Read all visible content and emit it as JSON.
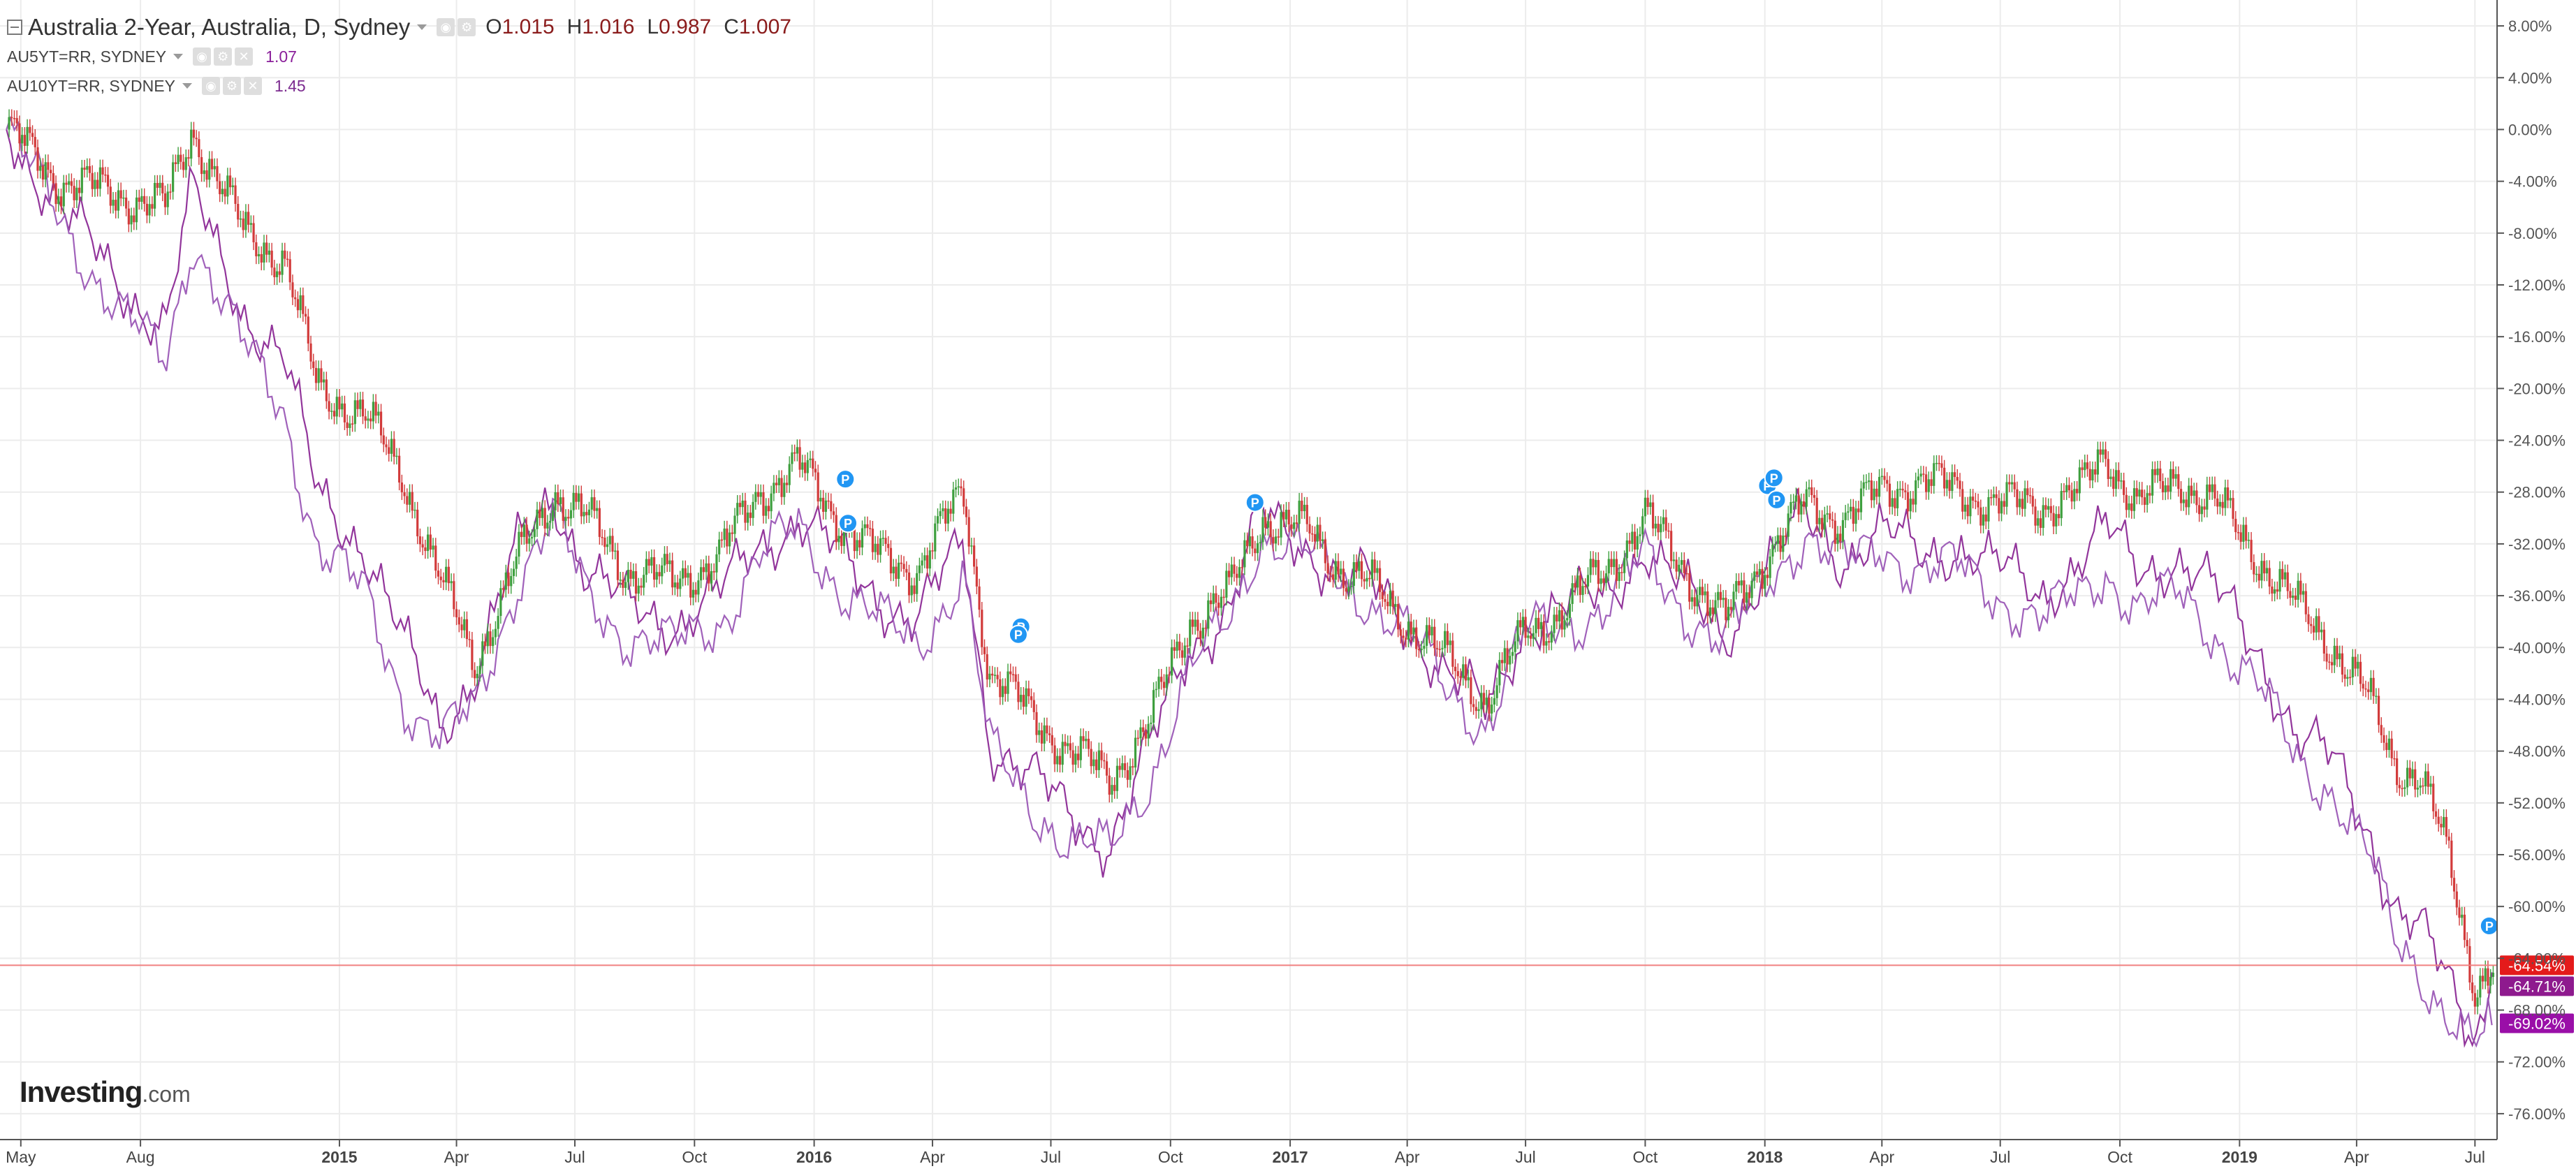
{
  "legend": {
    "main_title": "Australia 2-Year, Australia, D, Sydney",
    "ohlc": {
      "o_label": "O",
      "o_value": "1.015",
      "h_label": "H",
      "h_value": "1.016",
      "l_label": "L",
      "l_value": "0.987",
      "c_label": "C",
      "c_value": "1.007"
    },
    "series_2": {
      "name": "AU5YT=RR, SYDNEY",
      "value": "1.07"
    },
    "series_3": {
      "name": "AU10YT=RR, SYDNEY",
      "value": "1.45"
    }
  },
  "logo": {
    "main": "Investing",
    "suffix": ".com"
  },
  "colors": {
    "up_candle": "#3e9f3e",
    "down_candle": "#d23b3b",
    "au5yt_line": "#8c2a96",
    "au10yt_line": "#9b59b6",
    "last_price_line": "#f08080",
    "badge_red": "#e41b1b",
    "badge_purple_dark": "#8e1a8e",
    "badge_purple": "#9a0fa8",
    "pivot_marker": "#2196f3",
    "grid": "#ececec"
  },
  "chart_data": {
    "type": "line",
    "chart_style": "candlestick with percent-change comparison lines",
    "y_scale": "percent change",
    "ylim": [
      -78,
      10
    ],
    "y_ticks": [
      "8.00%",
      "4.00%",
      "0.00%",
      "-4.00%",
      "-8.00%",
      "-12.00%",
      "-16.00%",
      "-20.00%",
      "-24.00%",
      "-28.00%",
      "-32.00%",
      "-36.00%",
      "-40.00%",
      "-44.00%",
      "-48.00%",
      "-52.00%",
      "-56.00%",
      "-60.00%",
      "-64.00%",
      "-68.00%",
      "-72.00%",
      "-76.00%"
    ],
    "y_tick_values": [
      8,
      4,
      0,
      -4,
      -8,
      -12,
      -16,
      -20,
      -24,
      -28,
      -32,
      -36,
      -40,
      -44,
      -48,
      -52,
      -56,
      -60,
      -64,
      -68,
      -72,
      -76
    ],
    "x_ticks": [
      "May",
      "Aug",
      "2015",
      "Apr",
      "Jul",
      "Oct",
      "2016",
      "Apr",
      "Jul",
      "Oct",
      "2017",
      "Apr",
      "Jul",
      "Oct",
      "2018",
      "Apr",
      "Jul",
      "Oct",
      "2019",
      "Apr",
      "Jul"
    ],
    "x_tick_dates": [
      "2014-05-01",
      "2014-08-01",
      "2015-01-01",
      "2015-04-01",
      "2015-07-01",
      "2015-10-01",
      "2016-01-01",
      "2016-04-01",
      "2016-07-01",
      "2016-10-01",
      "2017-01-01",
      "2017-04-01",
      "2017-07-01",
      "2017-10-01",
      "2018-01-01",
      "2018-04-01",
      "2018-07-01",
      "2018-10-01",
      "2019-01-01",
      "2019-04-01",
      "2019-07-01"
    ],
    "bold_x_ticks": [
      "2015",
      "2016",
      "2017",
      "2018",
      "2019"
    ],
    "x_range": [
      "2014-04-15",
      "2019-07-18"
    ],
    "grid": true,
    "candles_primary": "Australia 2-Year",
    "series": [
      {
        "name": "Australia 2-Year",
        "style": "candles",
        "color_up": "#3e9f3e",
        "color_down": "#d23b3b",
        "x": [
          "2014-04-20",
          "2014-06-01",
          "2014-07-15",
          "2014-08-20",
          "2014-09-10",
          "2014-10-20",
          "2014-11-20",
          "2014-12-15",
          "2015-01-20",
          "2015-02-20",
          "2015-03-20",
          "2015-04-15",
          "2015-05-20",
          "2015-06-15",
          "2015-07-10",
          "2015-08-10",
          "2015-09-15",
          "2015-10-20",
          "2015-11-20",
          "2015-12-20",
          "2016-01-20",
          "2016-02-20",
          "2016-03-20",
          "2016-04-25",
          "2016-05-15",
          "2016-06-15",
          "2016-07-15",
          "2016-08-15",
          "2016-09-15",
          "2016-10-15",
          "2016-11-15",
          "2016-12-10",
          "2017-01-15",
          "2017-02-10",
          "2017-03-01",
          "2017-04-01",
          "2017-05-01",
          "2017-06-01",
          "2017-07-01",
          "2017-08-01",
          "2017-09-01",
          "2017-10-01",
          "2017-11-01",
          "2017-12-01",
          "2018-01-01",
          "2018-02-01",
          "2018-03-01",
          "2018-04-01",
          "2018-05-01",
          "2018-06-01",
          "2018-07-01",
          "2018-08-01",
          "2018-09-01",
          "2018-09-20",
          "2018-10-15",
          "2018-11-15",
          "2018-12-15",
          "2019-01-15",
          "2019-02-15",
          "2019-03-15",
          "2019-04-10",
          "2019-05-01",
          "2019-05-20",
          "2019-06-10",
          "2019-07-01",
          "2019-07-15"
        ],
        "values": [
          0,
          -4,
          -5,
          -6,
          0,
          -8,
          -10,
          -20,
          -22,
          -27,
          -35,
          -41,
          -33,
          -28,
          -30,
          -34,
          -35,
          -33,
          -28,
          -26,
          -30,
          -33,
          -34,
          -28,
          -42,
          -45,
          -48,
          -50,
          -46,
          -38,
          -36,
          -30,
          -31,
          -34,
          -35,
          -38,
          -41,
          -44,
          -39,
          -37,
          -34,
          -30,
          -34,
          -38,
          -33,
          -29,
          -30,
          -28,
          -27,
          -28,
          -29,
          -29,
          -28,
          -25,
          -29,
          -27,
          -29,
          -33,
          -37,
          -40,
          -44,
          -49,
          -50,
          -56,
          -66,
          -64.54
        ]
      },
      {
        "name": "AU5YT=RR, SYDNEY",
        "style": "line",
        "color": "#8c2a96",
        "x": [
          "2014-04-20",
          "2014-06-01",
          "2014-07-15",
          "2014-08-20",
          "2014-09-10",
          "2014-10-20",
          "2014-11-20",
          "2014-12-15",
          "2015-01-20",
          "2015-02-20",
          "2015-03-20",
          "2015-04-15",
          "2015-05-20",
          "2015-06-15",
          "2015-07-10",
          "2015-08-10",
          "2015-09-15",
          "2015-10-20",
          "2015-11-20",
          "2015-12-20",
          "2016-01-20",
          "2016-02-20",
          "2016-03-20",
          "2016-04-25",
          "2016-05-15",
          "2016-06-15",
          "2016-07-15",
          "2016-08-15",
          "2016-09-15",
          "2016-10-15",
          "2016-11-15",
          "2016-12-10",
          "2017-01-15",
          "2017-02-10",
          "2017-03-01",
          "2017-04-01",
          "2017-05-01",
          "2017-06-01",
          "2017-07-01",
          "2017-08-01",
          "2017-09-01",
          "2017-10-01",
          "2017-11-01",
          "2017-12-01",
          "2018-01-01",
          "2018-02-01",
          "2018-03-01",
          "2018-04-01",
          "2018-05-01",
          "2018-06-01",
          "2018-07-01",
          "2018-08-01",
          "2018-09-01",
          "2018-09-20",
          "2018-10-15",
          "2018-11-15",
          "2018-12-15",
          "2019-01-15",
          "2019-02-15",
          "2019-03-15",
          "2019-04-10",
          "2019-05-01",
          "2019-05-20",
          "2019-06-10",
          "2019-07-01",
          "2019-07-15"
        ],
        "values": [
          0,
          -6,
          -12,
          -15,
          -5,
          -14,
          -18,
          -28,
          -32,
          -40,
          -46,
          -42,
          -32,
          -28,
          -34,
          -37,
          -38,
          -36,
          -32,
          -30,
          -33,
          -36,
          -38,
          -32,
          -47,
          -50,
          -53,
          -55,
          -48,
          -40,
          -37,
          -30,
          -32,
          -35,
          -35,
          -38,
          -42,
          -45,
          -38,
          -37,
          -36,
          -32,
          -36,
          -39,
          -34,
          -30,
          -33,
          -31,
          -33,
          -32,
          -34,
          -36,
          -33,
          -31,
          -34,
          -33,
          -36,
          -40,
          -47,
          -49,
          -54,
          -60,
          -62,
          -66,
          -70,
          -64.71
        ]
      },
      {
        "name": "AU10YT=RR, SYDNEY",
        "style": "line",
        "color": "#9b59b6",
        "x": [
          "2014-04-20",
          "2014-06-01",
          "2014-07-15",
          "2014-08-20",
          "2014-09-10",
          "2014-10-20",
          "2014-11-20",
          "2014-12-15",
          "2015-01-20",
          "2015-02-20",
          "2015-03-20",
          "2015-04-15",
          "2015-05-20",
          "2015-06-15",
          "2015-07-10",
          "2015-08-10",
          "2015-09-15",
          "2015-10-20",
          "2015-11-20",
          "2015-12-20",
          "2016-01-20",
          "2016-02-20",
          "2016-03-20",
          "2016-04-25",
          "2016-05-15",
          "2016-06-15",
          "2016-07-15",
          "2016-08-15",
          "2016-09-15",
          "2016-10-15",
          "2016-11-15",
          "2016-12-10",
          "2017-01-15",
          "2017-02-10",
          "2017-03-01",
          "2017-04-01",
          "2017-05-01",
          "2017-06-01",
          "2017-07-01",
          "2017-08-01",
          "2017-09-01",
          "2017-10-01",
          "2017-11-01",
          "2017-12-01",
          "2018-01-01",
          "2018-02-01",
          "2018-03-01",
          "2018-04-01",
          "2018-05-01",
          "2018-06-01",
          "2018-07-01",
          "2018-08-01",
          "2018-09-01",
          "2018-09-20",
          "2018-10-15",
          "2018-11-15",
          "2018-12-15",
          "2019-01-15",
          "2019-02-15",
          "2019-03-15",
          "2019-04-10",
          "2019-05-01",
          "2019-05-20",
          "2019-06-10",
          "2019-07-01",
          "2019-07-15"
        ],
        "values": [
          0,
          -7,
          -14,
          -18,
          -8,
          -17,
          -22,
          -32,
          -36,
          -44,
          -47,
          -45,
          -34,
          -30,
          -36,
          -39,
          -40,
          -38,
          -33,
          -31,
          -35,
          -38,
          -40,
          -34,
          -48,
          -52,
          -55,
          -56,
          -50,
          -42,
          -38,
          -31,
          -33,
          -35,
          -36,
          -39,
          -43,
          -46,
          -39,
          -38,
          -37,
          -33,
          -37,
          -40,
          -35,
          -31,
          -34,
          -32,
          -34,
          -34,
          -36,
          -38,
          -36,
          -34,
          -37,
          -36,
          -39,
          -43,
          -49,
          -51,
          -56,
          -63,
          -65,
          -68,
          -71,
          -69.02
        ]
      }
    ],
    "last_value_badges": [
      {
        "label": "-64.54%",
        "value": -64.54,
        "color": "#e41b1b"
      },
      {
        "label": "-64.71%",
        "value": -64.71,
        "color": "#8e1a8e"
      },
      {
        "label": "-69.02%",
        "value": -69.02,
        "color": "#9a0fa8"
      }
    ],
    "last_price_line_value": -64.54,
    "pivot_markers": [
      {
        "label": "P",
        "date": "2016-01-25",
        "value": -27.0
      },
      {
        "label": "P",
        "date": "2016-01-27",
        "value": -30.4
      },
      {
        "label": "P",
        "date": "2016-06-08",
        "value": -38.4
      },
      {
        "label": "P",
        "date": "2016-06-06",
        "value": -39.0
      },
      {
        "label": "P",
        "date": "2016-12-05",
        "value": -28.8
      },
      {
        "label": "P",
        "date": "2018-01-03",
        "value": -27.5
      },
      {
        "label": "P",
        "date": "2018-01-08",
        "value": -26.9
      },
      {
        "label": "P",
        "date": "2018-01-10",
        "value": -28.6
      },
      {
        "label": "P",
        "date": "2019-07-12",
        "value": -61.5
      }
    ]
  }
}
